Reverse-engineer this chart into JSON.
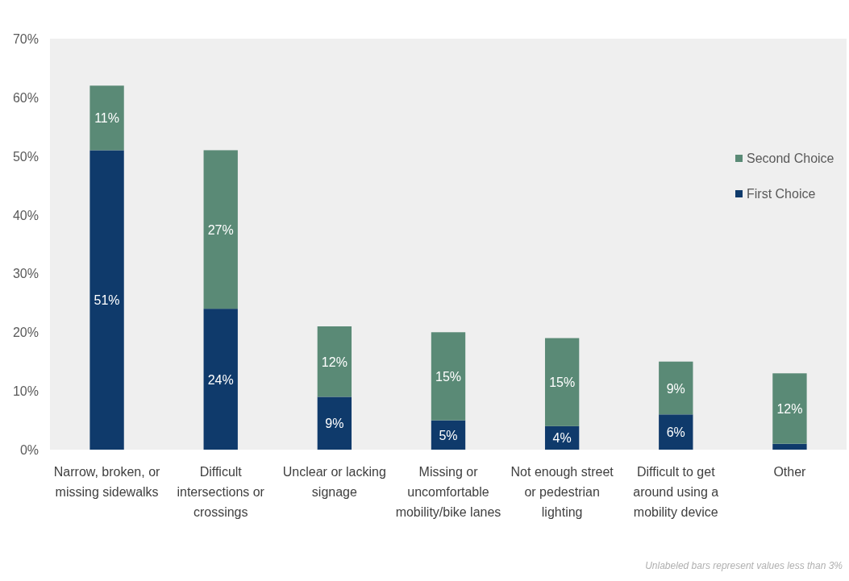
{
  "chart_data": {
    "type": "bar",
    "stacked": true,
    "categories": [
      "Narrow, broken, or missing sidewalks",
      "Difficult intersections or crossings",
      "Unclear or lacking signage",
      "Missing or uncomfortable mobility/bike lanes",
      "Not enough street or pedestrian lighting",
      "Difficult to get around using a mobility device",
      "Other"
    ],
    "series": [
      {
        "name": "First Choice",
        "color": "#0f3a6b",
        "values": [
          51,
          24,
          9,
          5,
          4,
          6,
          1
        ],
        "value_labels": [
          "51%",
          "24%",
          "9%",
          "5%",
          "4%",
          "6%",
          null
        ]
      },
      {
        "name": "Second Choice",
        "color": "#5a8a76",
        "values": [
          11,
          27,
          12,
          15,
          15,
          9,
          12
        ],
        "value_labels": [
          "11%",
          "27%",
          "12%",
          "15%",
          "15%",
          "9%",
          "12%"
        ]
      }
    ],
    "ylim": [
      0,
      70
    ],
    "yticks": [
      {
        "value": 0,
        "label": "0%"
      },
      {
        "value": 10,
        "label": "10%"
      },
      {
        "value": 20,
        "label": "20%"
      },
      {
        "value": 30,
        "label": "30%"
      },
      {
        "value": 40,
        "label": "40%"
      },
      {
        "value": 50,
        "label": "50%"
      },
      {
        "value": 60,
        "label": "60%"
      },
      {
        "value": 70,
        "label": "70%"
      }
    ],
    "legend": "right",
    "annotations": [
      "Unlabeled bars represent values less than 3%"
    ]
  }
}
